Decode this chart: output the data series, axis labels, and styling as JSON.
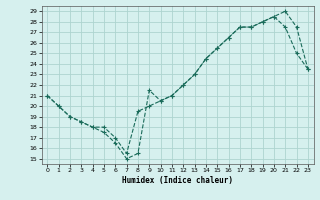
{
  "xlabel": "Humidex (Indice chaleur)",
  "bg_color": "#d6f0ee",
  "grid_color": "#aed4d0",
  "line_color": "#1a6b5a",
  "xlim": [
    -0.5,
    23.5
  ],
  "ylim": [
    14.5,
    29.5
  ],
  "yticks": [
    15,
    16,
    17,
    18,
    19,
    20,
    21,
    22,
    23,
    24,
    25,
    26,
    27,
    28,
    29
  ],
  "xticks": [
    0,
    1,
    2,
    3,
    4,
    5,
    6,
    7,
    8,
    9,
    10,
    11,
    12,
    13,
    14,
    15,
    16,
    17,
    18,
    19,
    20,
    21,
    22,
    23
  ],
  "line1_x": [
    0,
    1,
    2,
    3,
    4,
    5,
    6,
    7,
    8,
    9,
    10,
    11,
    12,
    13,
    14,
    15,
    16,
    17,
    18,
    19,
    20,
    21,
    22,
    23
  ],
  "line1_y": [
    21.0,
    20.0,
    19.0,
    18.5,
    18.0,
    17.5,
    16.5,
    15.0,
    15.5,
    21.5,
    20.5,
    21.0,
    22.0,
    23.0,
    24.5,
    25.5,
    26.5,
    27.5,
    27.5,
    28.0,
    28.5,
    27.5,
    25.0,
    23.5
  ],
  "line2_x": [
    0,
    1,
    2,
    3,
    4,
    5,
    6,
    7,
    8,
    9,
    10,
    11,
    12,
    13,
    14,
    15,
    16,
    17,
    18,
    19,
    20,
    21,
    22,
    23
  ],
  "line2_y": [
    21.0,
    20.0,
    19.0,
    18.5,
    18.0,
    18.0,
    17.0,
    15.5,
    19.5,
    20.0,
    20.5,
    21.0,
    22.0,
    23.0,
    24.5,
    25.5,
    26.5,
    27.5,
    27.5,
    28.0,
    28.5,
    29.0,
    27.5,
    23.5
  ]
}
